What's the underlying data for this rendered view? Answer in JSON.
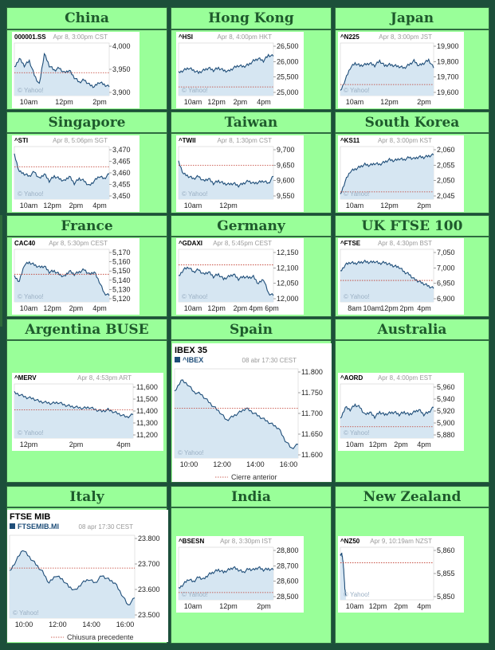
{
  "colors": {
    "header_bg": "#99ff99",
    "header_text": "#1e5a2c",
    "line": "#1f4e79",
    "fill": "#d6e6f2",
    "prev_close": "#c0392b"
  },
  "watermark": "© Yahoo!",
  "markets": [
    {
      "name": "China",
      "symbol": "000001.SS",
      "date": "Apr 8, 3:00pm CST",
      "y_ticks": [
        "4,000",
        "3,950",
        "3,900"
      ],
      "x_ticks": [
        "10am",
        "12pm",
        "2pm"
      ]
    },
    {
      "name": "Hong Kong",
      "symbol": "^HSI",
      "date": "Apr 8, 4:00pm HKT",
      "y_ticks": [
        "26,500",
        "26,000",
        "25,500",
        "25,000"
      ],
      "x_ticks": [
        "10am",
        "12pm",
        "2pm",
        "4pm"
      ]
    },
    {
      "name": "Japan",
      "symbol": "^N225",
      "date": "Apr 8, 3:00pm JST",
      "y_ticks": [
        "19,900",
        "19,800",
        "19,700",
        "19,600"
      ],
      "x_ticks": [
        "10am",
        "12pm",
        "2pm"
      ]
    },
    {
      "name": "Singapore",
      "symbol": "^STI",
      "date": "Apr 8, 5:06pm SGT",
      "y_ticks": [
        "3,470",
        "3,465",
        "3,460",
        "3,455",
        "3,450"
      ],
      "x_ticks": [
        "10am",
        "12pm",
        "2pm",
        "4pm"
      ]
    },
    {
      "name": "Taiwan",
      "symbol": "^TWII",
      "date": "Apr 8, 1:30pm CST",
      "y_ticks": [
        "9,700",
        "9,650",
        "9,600",
        "9,550"
      ],
      "x_ticks": [
        "10am",
        "12pm"
      ]
    },
    {
      "name": "South Korea",
      "symbol": "^KS11",
      "date": "Apr 8, 3:00pm KST",
      "y_ticks": [
        "2,060",
        "2,055",
        "2,050",
        "2,045"
      ],
      "x_ticks": [
        "10am",
        "12pm",
        "2pm"
      ]
    },
    {
      "name": "France",
      "symbol": "CAC40",
      "date": "Apr 8, 5:30pm CEST",
      "y_ticks": [
        "5,170",
        "5,160",
        "5,150",
        "5,140",
        "5,130",
        "5,120"
      ],
      "x_ticks": [
        "10am",
        "12pm",
        "2pm",
        "4pm"
      ]
    },
    {
      "name": "Germany",
      "symbol": "^GDAXI",
      "date": "Apr 8, 5:45pm CEST",
      "y_ticks": [
        "12,150",
        "12,100",
        "12,050",
        "12,000"
      ],
      "x_ticks": [
        "10am",
        "12pm",
        "2pm",
        "4pm 6pm"
      ]
    },
    {
      "name": "UK FTSE 100",
      "symbol": "^FTSE",
      "date": "Apr 8, 4:30pm BST",
      "y_ticks": [
        "7,050",
        "7,000",
        "6,950",
        "6,900"
      ],
      "x_ticks": [
        "8am",
        "10am",
        "12pm",
        "2pm",
        "4pm"
      ]
    },
    {
      "name": "Argentina BUSE",
      "symbol": "^MERV",
      "date": "Apr 8, 4:53pm ART",
      "y_ticks": [
        "11,600",
        "11,500",
        "11,400",
        "11,300",
        "11,200"
      ],
      "x_ticks": [
        "12pm",
        "2pm",
        "4pm"
      ]
    },
    {
      "name": "Spain",
      "title": "IBEX 35",
      "symbol": "^IBEX",
      "date": "08 abr 17:30 CEST",
      "y_ticks": [
        "11.800",
        "11.750",
        "11.700",
        "11.650",
        "11.600"
      ],
      "x_ticks": [
        "10:00",
        "12:00",
        "14:00",
        "16:00"
      ],
      "legend": "Cierre anterior"
    },
    {
      "name": "Australia",
      "symbol": "^AORD",
      "date": "Apr 8, 4:00pm EST",
      "y_ticks": [
        "5,960",
        "5,940",
        "5,920",
        "5,900",
        "5,880"
      ],
      "x_ticks": [
        "10am",
        "12pm",
        "2pm",
        "4pm"
      ]
    },
    {
      "name": "Italy",
      "title": "FTSE MIB",
      "symbol": "FTSEMIB.MI",
      "date": "08 apr 17:30 CEST",
      "y_ticks": [
        "23.800",
        "23.700",
        "23.600",
        "23.500"
      ],
      "x_ticks": [
        "10:00",
        "12:00",
        "14:00",
        "16:00"
      ],
      "legend": "Chiusura precedente"
    },
    {
      "name": "India",
      "symbol": "^BSESN",
      "date": "Apr 8, 3:30pm IST",
      "y_ticks": [
        "28,800",
        "28,700",
        "28,600",
        "28,500"
      ],
      "x_ticks": [
        "10am",
        "12pm",
        "2pm"
      ]
    },
    {
      "name": "New Zealand",
      "symbol": "^NZ50",
      "date": "Apr 9, 10:19am NZST",
      "y_ticks": [
        "5,860",
        "5,855",
        "5,850"
      ],
      "x_ticks": [
        "10am",
        "12pm",
        "2pm",
        "4pm"
      ]
    }
  ]
}
